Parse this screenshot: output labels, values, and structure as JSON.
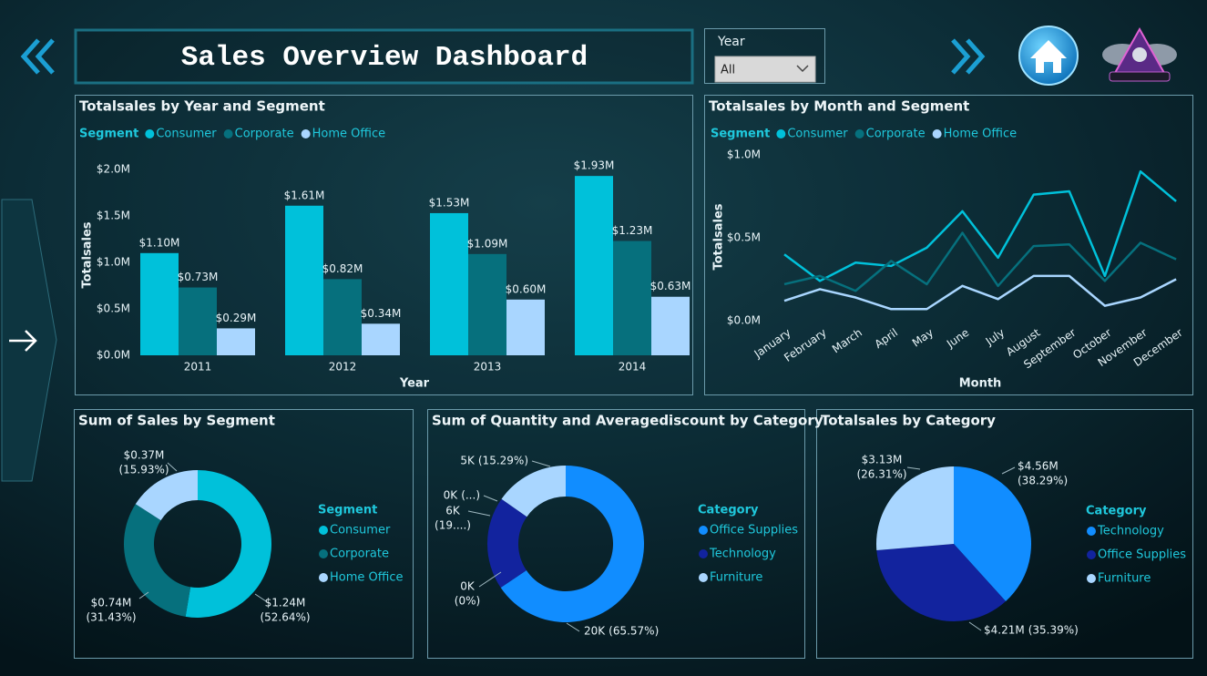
{
  "header": {
    "title": "Sales Overview Dashboard",
    "slicer": {
      "label": "Year",
      "value": "All"
    }
  },
  "chart_data": [
    {
      "type": "bar",
      "title": "Totalsales by Year and Segment",
      "legend_title": "Segment",
      "x_label": "Year",
      "y_label": "Totalsales",
      "categories": [
        "2011",
        "2012",
        "2013",
        "2014"
      ],
      "series": [
        {
          "name": "Consumer",
          "color": "#00c1da",
          "values": [
            1.1,
            1.61,
            1.53,
            1.93
          ],
          "value_labels": [
            "$1.10M",
            "$1.61M",
            "$1.53M",
            "$1.93M"
          ]
        },
        {
          "name": "Corporate",
          "color": "#06707d",
          "values": [
            0.73,
            0.82,
            1.09,
            1.23
          ],
          "value_labels": [
            "$0.73M",
            "$0.82M",
            "$1.09M",
            "$1.23M"
          ]
        },
        {
          "name": "Home Office",
          "color": "#a9d6ff",
          "values": [
            0.29,
            0.34,
            0.6,
            0.63
          ],
          "value_labels": [
            "$0.29M",
            "$0.34M",
            "$0.60M",
            "$0.63M"
          ]
        }
      ],
      "ylim": [
        0,
        2.0
      ],
      "yticks": [
        {
          "value": 0,
          "label": "$0.0M"
        },
        {
          "value": 0.5,
          "label": "$0.5M"
        },
        {
          "value": 1.0,
          "label": "$1.0M"
        },
        {
          "value": 1.5,
          "label": "$1.5M"
        },
        {
          "value": 2.0,
          "label": "$2.0M"
        }
      ]
    },
    {
      "type": "line",
      "title": "Totalsales by Month and Segment",
      "legend_title": "Segment",
      "x_label": "Month",
      "y_label": "Totalsales",
      "categories": [
        "January",
        "February",
        "March",
        "April",
        "May",
        "June",
        "July",
        "August",
        "September",
        "October",
        "November",
        "December"
      ],
      "series": [
        {
          "name": "Consumer",
          "color": "#00c1da",
          "values": [
            0.4,
            0.24,
            0.35,
            0.33,
            0.44,
            0.66,
            0.38,
            0.76,
            0.78,
            0.27,
            0.9,
            0.72
          ]
        },
        {
          "name": "Corporate",
          "color": "#06707d",
          "values": [
            0.22,
            0.27,
            0.18,
            0.36,
            0.22,
            0.53,
            0.21,
            0.45,
            0.46,
            0.24,
            0.47,
            0.37
          ]
        },
        {
          "name": "Home Office",
          "color": "#a9d6ff",
          "values": [
            0.12,
            0.19,
            0.14,
            0.07,
            0.07,
            0.21,
            0.13,
            0.27,
            0.27,
            0.09,
            0.14,
            0.25
          ]
        }
      ],
      "ylim": [
        0,
        1.0
      ],
      "yticks": [
        {
          "value": 0,
          "label": "$0.0M"
        },
        {
          "value": 0.5,
          "label": "$0.5M"
        },
        {
          "value": 1.0,
          "label": "$1.0M"
        }
      ]
    },
    {
      "type": "donut",
      "title": "Sum of Sales by Segment",
      "legend_title": "Segment",
      "categories": [
        "Consumer",
        "Corporate",
        "Home Office"
      ],
      "colors": [
        "#00c1da",
        "#06707d",
        "#a9d6ff"
      ],
      "values": [
        1.24,
        0.74,
        0.37
      ],
      "value_labels": [
        "$1.24M",
        "$0.74M",
        "$0.37M"
      ],
      "percents": [
        52.64,
        31.43,
        15.93
      ],
      "percent_labels": [
        "(52.64%)",
        "(31.43%)",
        "(15.93%)"
      ]
    },
    {
      "type": "donut",
      "title": "Sum of Quantity and Averagediscount by Category",
      "legend_title": "Category",
      "categories": [
        "Office Supplies",
        "Technology",
        "Furniture",
        null,
        null
      ],
      "colors": [
        "#118dff",
        "#12239e",
        "#a9d6ff",
        "#118dff",
        "#12239e"
      ],
      "values": [
        20,
        6,
        5,
        0,
        0
      ],
      "value_labels": [
        "20K",
        "6K",
        "5K",
        "0K",
        "0K"
      ],
      "percents": [
        65.57,
        19.14,
        15.29,
        0,
        0
      ],
      "percent_labels": [
        "(65.57%)",
        "(19....)",
        "(15.29%)",
        "(...)",
        "(0%)"
      ]
    },
    {
      "type": "pie",
      "title": "Totalsales by Category",
      "legend_title": "Category",
      "categories": [
        "Technology",
        "Office Supplies",
        "Furniture"
      ],
      "colors": [
        "#118dff",
        "#12239e",
        "#a9d6ff"
      ],
      "values": [
        4.56,
        4.21,
        3.13
      ],
      "value_labels": [
        "$4.56M",
        "$4.21M",
        "$3.13M"
      ],
      "percents": [
        38.29,
        35.39,
        26.31
      ],
      "percent_labels": [
        "(38.29%)",
        "(35.39%)",
        "(26.31%)"
      ]
    }
  ]
}
